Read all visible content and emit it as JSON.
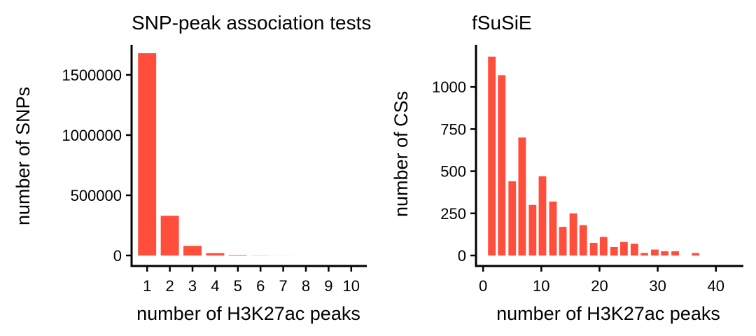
{
  "chart_data": [
    {
      "type": "bar",
      "title": "SNP-peak association tests",
      "xlabel": "number of H3K27ac peaks",
      "ylabel": "number of SNPs",
      "categories": [
        "1",
        "2",
        "3",
        "4",
        "5",
        "6",
        "7",
        "8",
        "9",
        "10"
      ],
      "values": [
        1680000,
        330000,
        80000,
        20000,
        5000,
        1500,
        500,
        200,
        100,
        50
      ],
      "ylim": [
        0,
        1750000
      ],
      "yticks": [
        0,
        500000,
        1000000,
        1500000
      ],
      "ytick_labels": [
        "0",
        "500000",
        "1000000",
        "1500000"
      ],
      "bar_color": "#ff4e3c",
      "grid": false
    },
    {
      "type": "bar",
      "title": "fSuSiE",
      "xlabel": "number of H3K27ac peaks",
      "ylabel": "number of CSs",
      "x": [
        1,
        2,
        3,
        4,
        5,
        6,
        7,
        8,
        9,
        10,
        11,
        12,
        13,
        14,
        15,
        16,
        17,
        18,
        19,
        20,
        21,
        22,
        23,
        24,
        25,
        26,
        27,
        28,
        29,
        30,
        31,
        32,
        33,
        34,
        35,
        36,
        37,
        38,
        39
      ],
      "values": [
        1180,
        1070,
        0,
        440,
        0,
        700,
        0,
        300,
        0,
        470,
        0,
        320,
        0,
        170,
        0,
        250,
        0,
        180,
        0,
        75,
        0,
        110,
        0,
        50,
        0,
        80,
        0,
        70,
        0,
        15,
        0,
        35,
        0,
        25,
        0,
        0,
        0,
        0,
        0
      ],
      "bars": [
        {
          "x": 1.5,
          "y": 1180
        },
        {
          "x": 3.2,
          "y": 1070
        },
        {
          "x": 5,
          "y": 440
        },
        {
          "x": 6.7,
          "y": 700
        },
        {
          "x": 8.5,
          "y": 300
        },
        {
          "x": 10.2,
          "y": 470
        },
        {
          "x": 12,
          "y": 320
        },
        {
          "x": 13.7,
          "y": 170
        },
        {
          "x": 15.5,
          "y": 250
        },
        {
          "x": 17.2,
          "y": 180
        },
        {
          "x": 19,
          "y": 75
        },
        {
          "x": 20.7,
          "y": 110
        },
        {
          "x": 22.5,
          "y": 50
        },
        {
          "x": 24.2,
          "y": 80
        },
        {
          "x": 26,
          "y": 70
        },
        {
          "x": 27.7,
          "y": 15
        },
        {
          "x": 29.5,
          "y": 35
        },
        {
          "x": 31.2,
          "y": 25
        },
        {
          "x": 33,
          "y": 25
        },
        {
          "x": 36.5,
          "y": 15
        }
      ],
      "xlim": [
        -0.5,
        44
      ],
      "xticks": [
        0,
        10,
        20,
        30,
        40
      ],
      "xtick_labels": [
        "0",
        "10",
        "20",
        "30",
        "40"
      ],
      "ylim": [
        0,
        1250
      ],
      "yticks": [
        0,
        250,
        500,
        750,
        1000
      ],
      "ytick_labels": [
        "0",
        "250",
        "500",
        "750",
        "1000"
      ],
      "bar_color": "#ff4e3c",
      "grid": false
    }
  ]
}
